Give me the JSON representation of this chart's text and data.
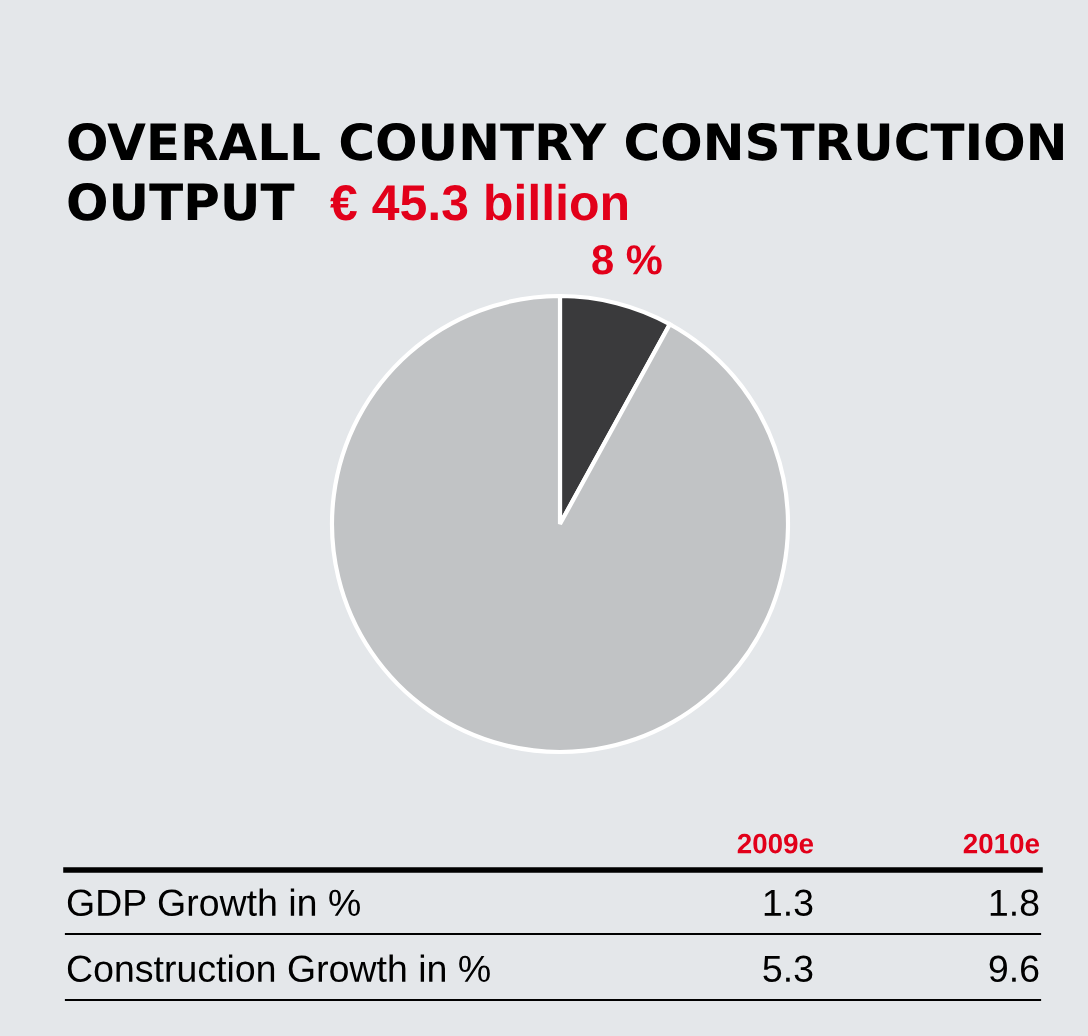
{
  "chart_data": {
    "type": "pie",
    "title": "OVERALL COUNTRY CONSTRUCTION\nOUTPUT",
    "subtitle": "€ 45.3 billion",
    "categories": [
      null,
      null
    ],
    "values": [
      8,
      92
    ],
    "colors": [
      "#3a3a3c",
      "#c1c3c5"
    ],
    "value_labels": [
      "8 %",
      null
    ],
    "annotations": [
      "2009e",
      "2010e",
      "GDP Growth in %",
      "1.3",
      "1.8",
      "Construction Growth in %",
      "5.3",
      "9.6"
    ]
  }
}
